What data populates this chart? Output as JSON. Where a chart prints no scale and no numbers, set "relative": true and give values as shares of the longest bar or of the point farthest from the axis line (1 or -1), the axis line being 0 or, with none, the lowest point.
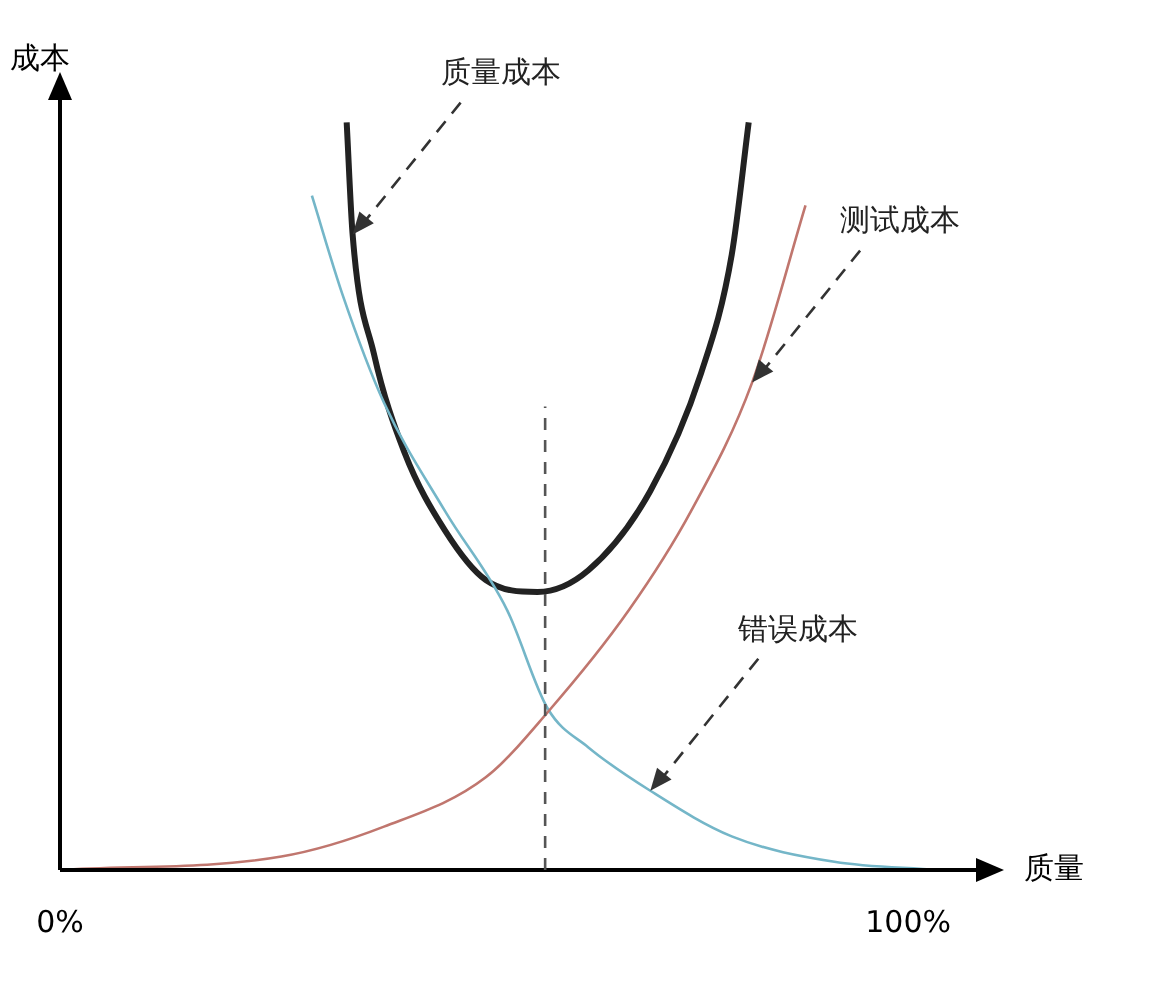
{
  "chart_data": {
    "type": "line",
    "relative": true,
    "xlabel": "质量",
    "ylabel": "成本",
    "xlim": [
      0,
      108
    ],
    "xticks": [
      {
        "value": 0,
        "label": "0%"
      },
      {
        "value": 100,
        "label": "100%"
      }
    ],
    "marker": "none",
    "legend": false,
    "series": [
      {
        "color": "#c0766e",
        "x": [
          0,
          26.1,
          38.2,
          50.2,
          57.5,
          67.1,
          74.4,
          81.6,
          87.9
        ],
        "values": [
          0,
          0.018,
          0.058,
          0.124,
          0.211,
          0.348,
          0.48,
          0.652,
          0.889
        ]
      },
      {
        "color": "#74b6c8",
        "x": [
          29.7,
          33.3,
          38.2,
          45.4,
          52.7,
          57.5,
          62.3,
          69.6,
          79.2,
          91.3,
          103.4
        ],
        "values": [
          0.902,
          0.77,
          0.625,
          0.48,
          0.348,
          0.216,
          0.164,
          0.106,
          0.045,
          0.011,
          0
        ]
      },
      {
        "color": "#222222",
        "x": [
          33.8,
          34.5,
          37.0,
          40.6,
          45.4,
          50.2,
          56.3,
          62.3,
          69.6,
          75.6,
          79.2,
          81.2
        ],
        "values": [
          1.0,
          0.85,
          0.691,
          0.559,
          0.454,
          0.388,
          0.372,
          0.401,
          0.507,
          0.665,
          0.823,
          1.0
        ]
      }
    ],
    "ref_lines": [
      {
        "axis": "x",
        "value": 57.2,
        "line_style": "dashed",
        "color": "#555555"
      }
    ],
    "annotations": [
      {
        "text": "质量成本",
        "x": 34.5,
        "y": 0.85
      },
      {
        "text": "测试成本",
        "x": 81.6,
        "y": 0.652
      },
      {
        "text": "错误成本",
        "x": 69.6,
        "y": 0.106
      }
    ]
  }
}
